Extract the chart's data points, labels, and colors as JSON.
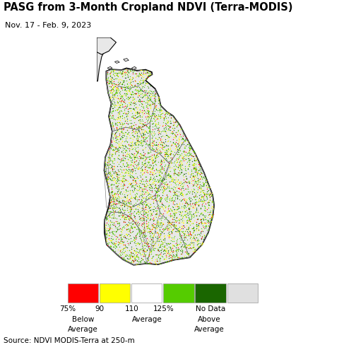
{
  "title": "PASG from 3-Month Cropland NDVI (Terra-MODIS)",
  "subtitle": "Nov. 17 - Feb. 9, 2023",
  "source_text": "Source: NDVI MODIS-Terra at 250-m",
  "background_color": "#caf0f4",
  "land_color": "#e8e8e8",
  "border_color": "#000000",
  "district_border_color": "#777777",
  "legend_colors": [
    "#ff0000",
    "#ffff00",
    "#ffffff",
    "#55cc00",
    "#1a6600",
    "#e0e0e0"
  ],
  "dot_colors": [
    "#ff0000",
    "#ffff00",
    "#55cc00",
    "#1a6600"
  ],
  "dot_probs": [
    0.1,
    0.28,
    0.42,
    0.2
  ],
  "n_points": 5000,
  "figsize": [
    4.8,
    5.05
  ],
  "dpi": 100,
  "map_xlim": [
    79.5,
    82.5
  ],
  "map_ylim": [
    5.5,
    10.5
  ],
  "title_fontsize": 10.5,
  "subtitle_fontsize": 8,
  "legend_fontsize": 7.5,
  "source_fontsize": 7.5
}
